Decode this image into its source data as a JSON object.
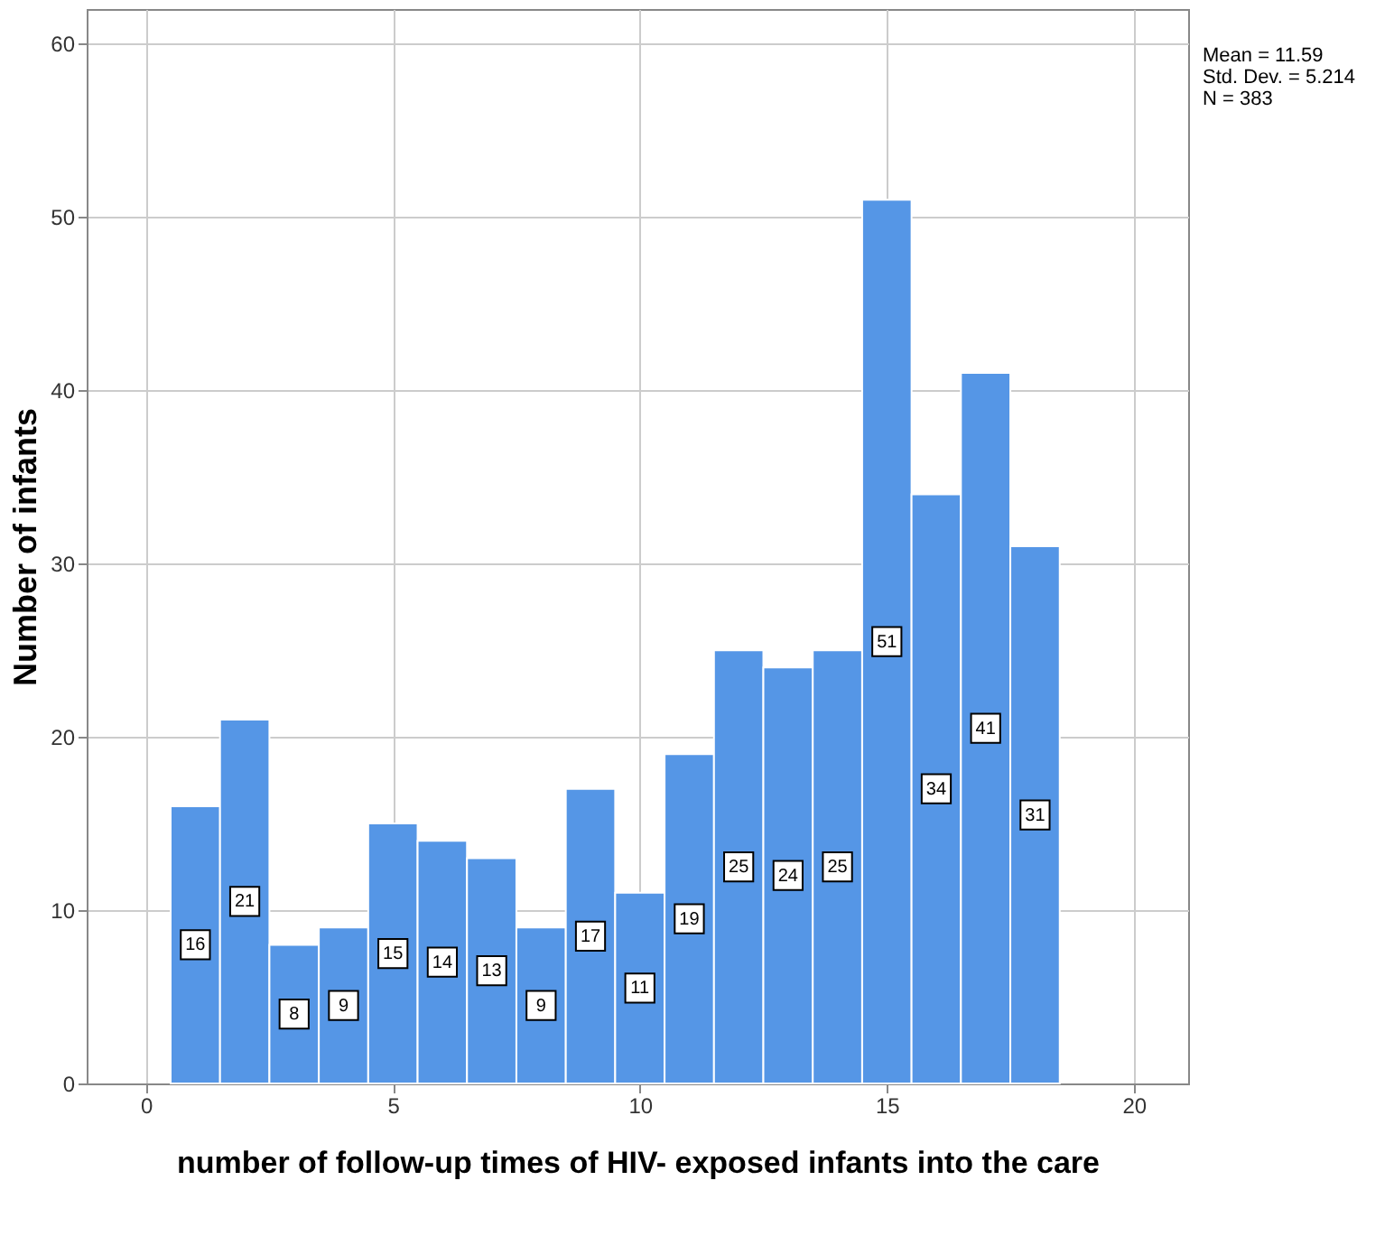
{
  "chart_data": {
    "type": "histogram",
    "xlabel": "number of follow-up times of HIV- exposed infants into the care",
    "ylabel": "Number of infants",
    "bins": [
      0.5,
      1.5,
      2.5,
      3.5,
      4.5,
      5.5,
      6.5,
      7.5,
      8.5,
      9.5,
      10.5,
      11.5,
      12.5,
      13.5,
      14.5,
      15.5,
      16.5,
      17.5,
      18.5
    ],
    "values": [
      16,
      21,
      8,
      9,
      15,
      14,
      13,
      9,
      17,
      11,
      19,
      25,
      24,
      25,
      51,
      34,
      41,
      31
    ],
    "color": "#5596e6",
    "xlim": [
      -1.2,
      21.1
    ],
    "xticks": [
      0,
      5,
      10,
      15,
      20
    ],
    "ylim": [
      0,
      62
    ],
    "yticks": [
      0,
      10,
      20,
      30,
      40,
      50,
      60
    ],
    "grid": true,
    "data_labels": true,
    "annotations": [
      "Mean = 11.59",
      "Std. Dev. = 5.214",
      "N = 383"
    ]
  }
}
